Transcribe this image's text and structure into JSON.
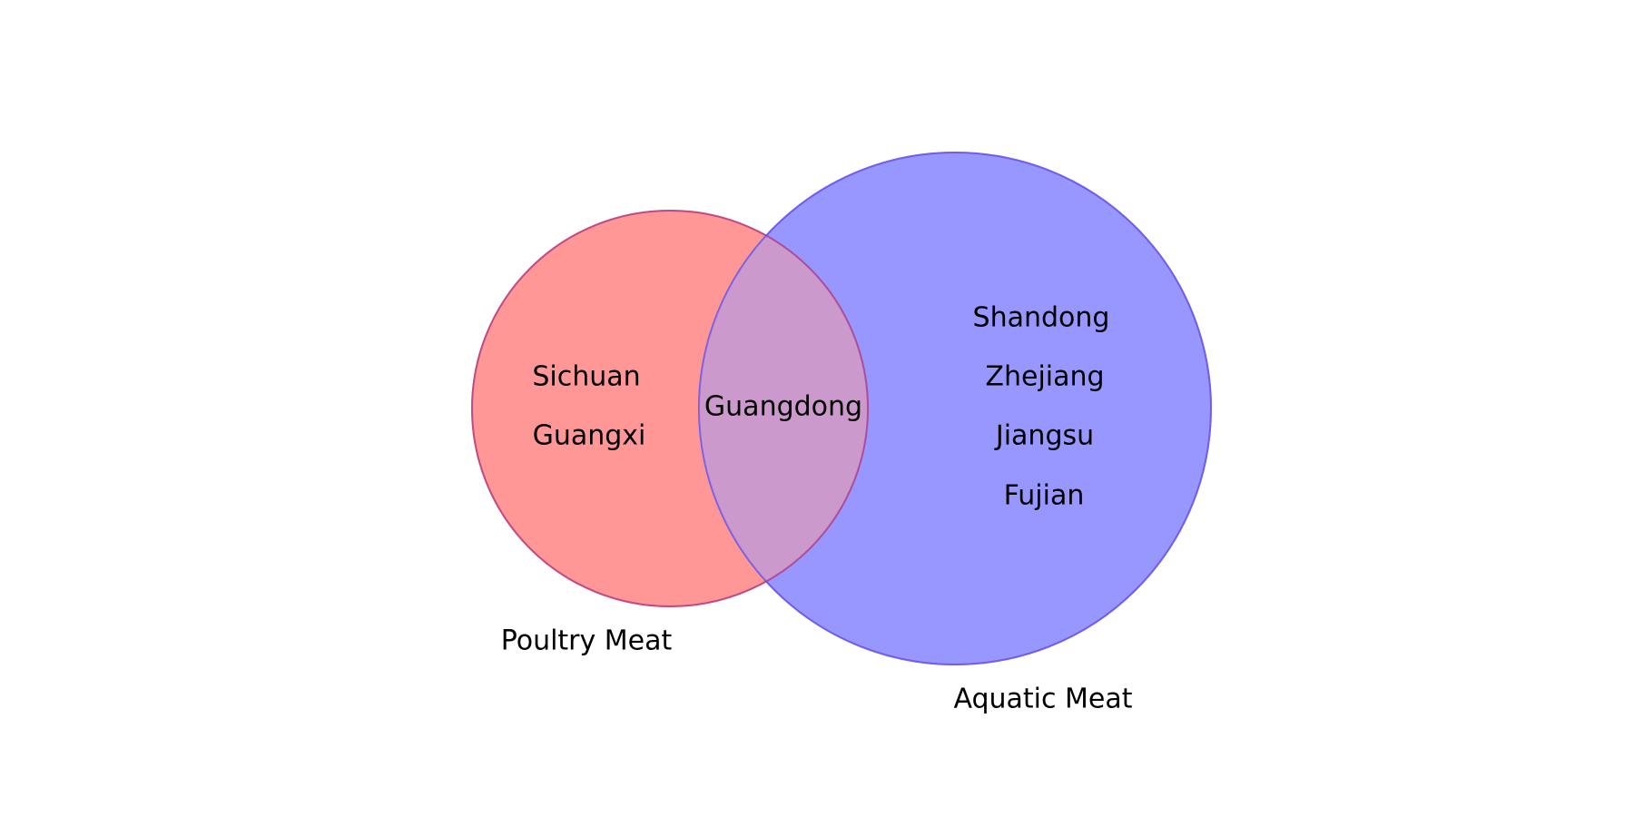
{
  "sets": [
    {
      "name": "Poultry Meat",
      "color": "#ff6b6b",
      "only_items": [
        "Sichuan",
        "Guangxi"
      ]
    },
    {
      "name": "Aquatic Meat",
      "color": "#6b6bff",
      "only_items": [
        "Shandong",
        "Zhejiang",
        "Jiangsu",
        "Fujian"
      ]
    }
  ],
  "intersection": {
    "items": [
      "Guangdong"
    ]
  },
  "overlap_color": "#cc99cc"
}
